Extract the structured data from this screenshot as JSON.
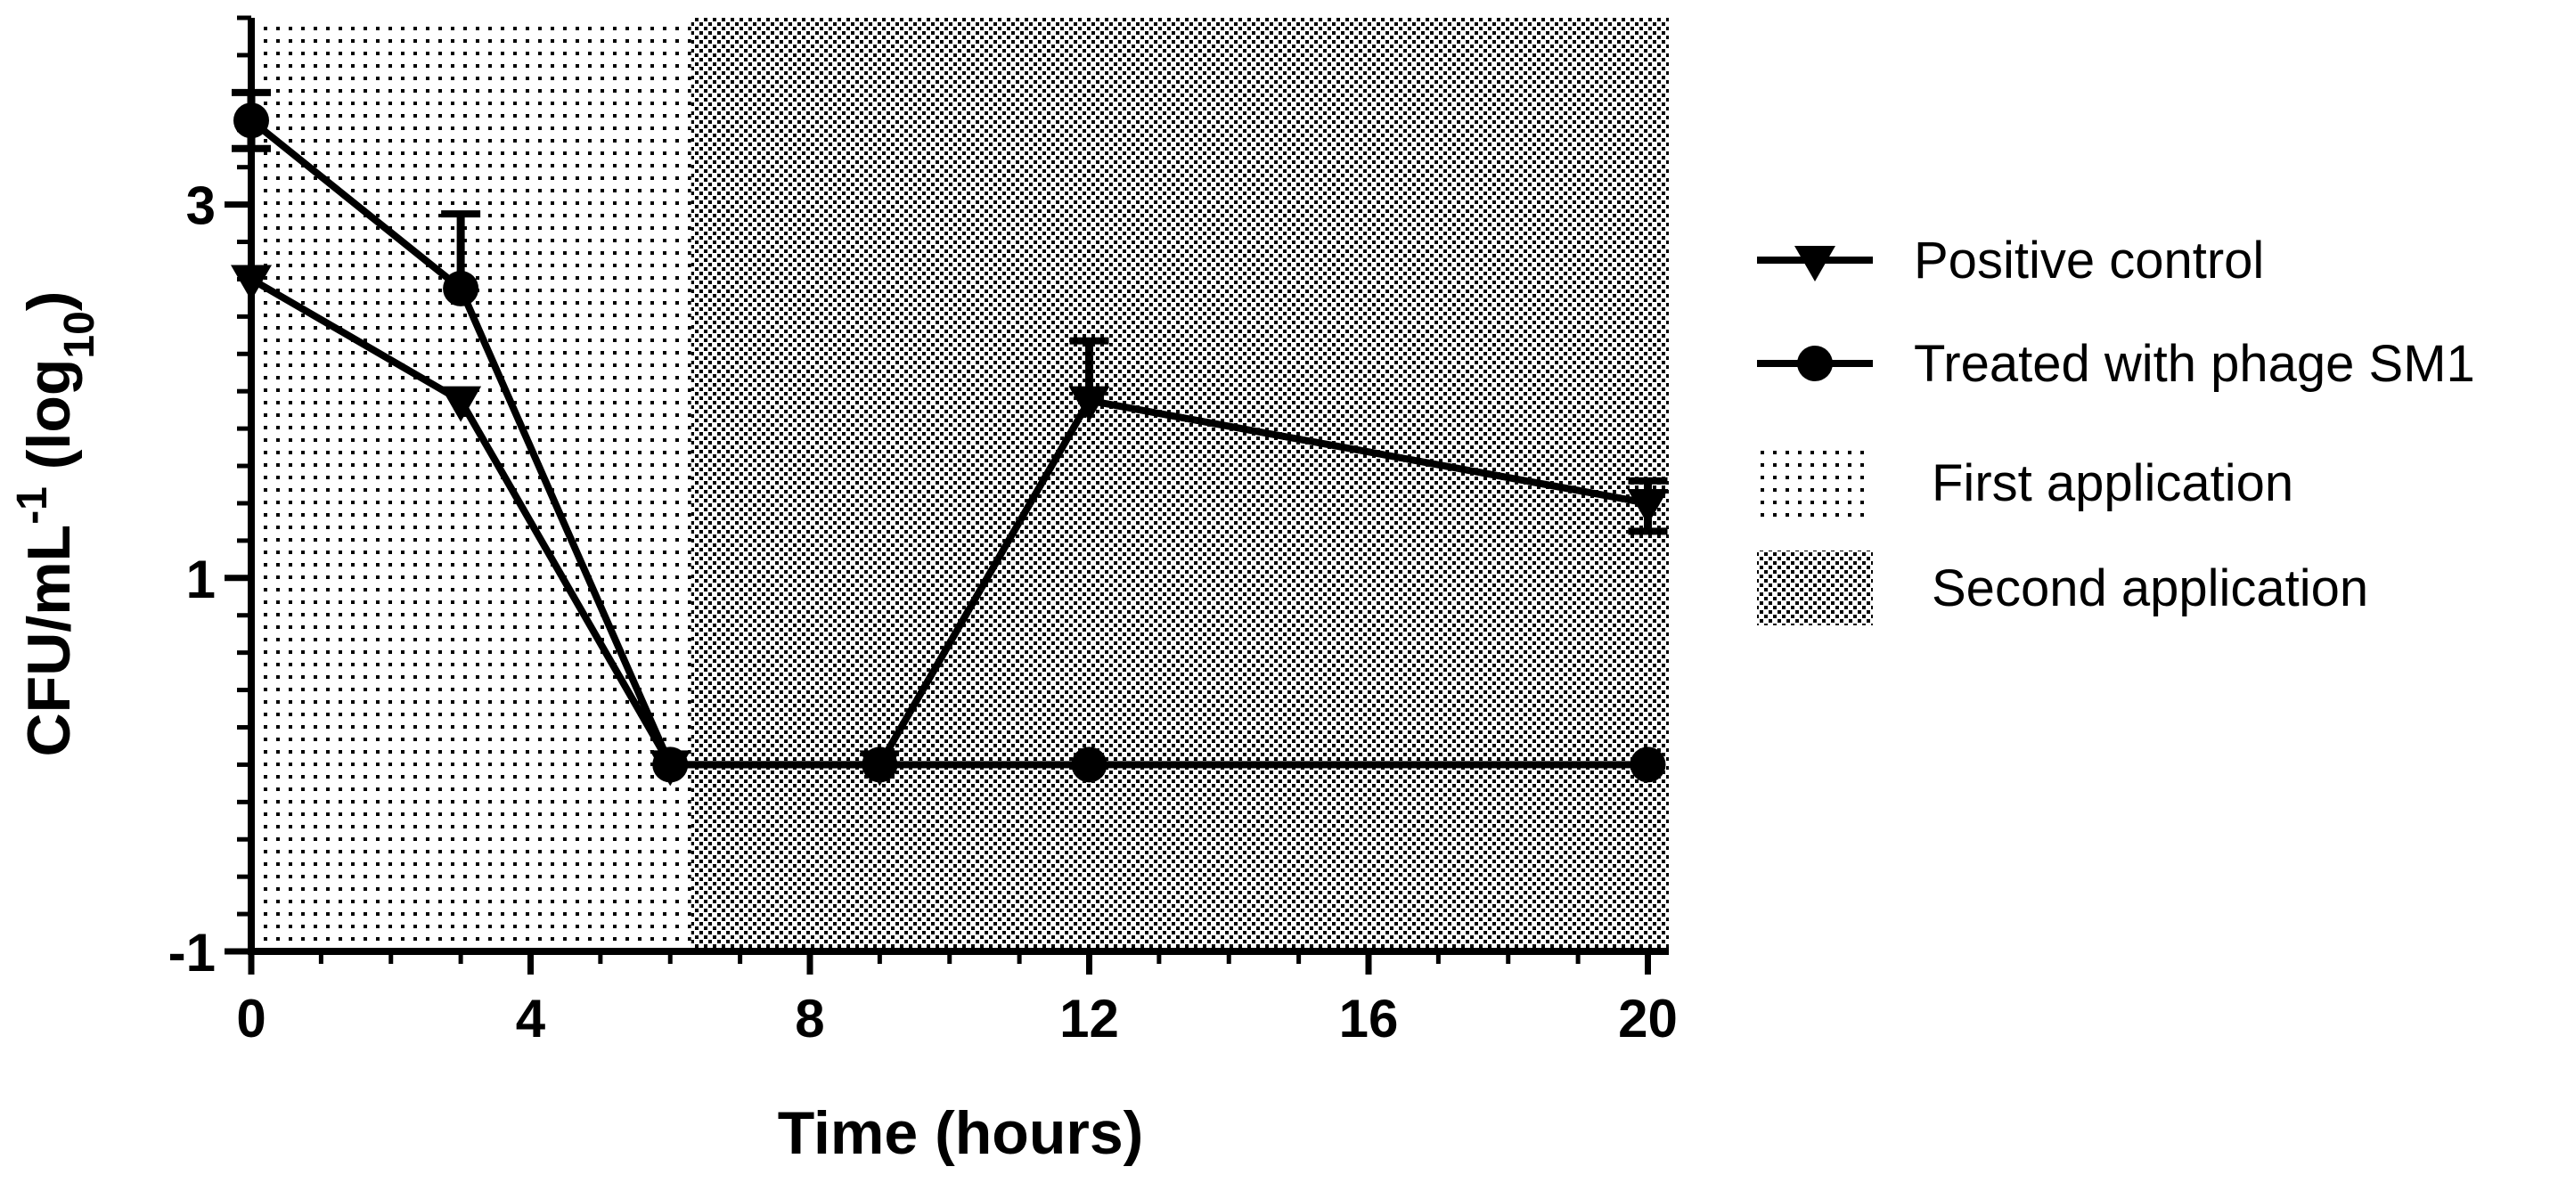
{
  "chart_data": {
    "type": "line",
    "xlabel": "Time (hours)",
    "ylabel": {
      "prefix": "CFU/mL",
      "sup": "-1",
      "log_prefix": " (log",
      "sub": "10",
      "suffix": ")"
    },
    "xlim": [
      0,
      20.3
    ],
    "ylim": [
      -1,
      4
    ],
    "x_ticks": [
      0,
      4,
      8,
      12,
      16,
      20
    ],
    "x_tick_labels": [
      "0",
      "4",
      "8",
      "12",
      "16",
      "20"
    ],
    "y_ticks": [
      -1,
      1,
      3
    ],
    "y_tick_labels": [
      "-1",
      "1",
      "3"
    ],
    "y_minor_ticks": [
      -0.8,
      -0.6,
      -0.4,
      -0.2,
      0,
      0.2,
      0.4,
      0.6,
      0.8,
      1.2,
      1.4,
      1.6,
      1.8,
      2,
      2.2,
      2.4,
      2.6,
      2.8,
      3.2,
      3.4,
      3.6,
      3.8,
      4
    ],
    "grid": false,
    "legend_position": "right",
    "regions": [
      {
        "name": "First application",
        "x_start": 0,
        "x_end": 6.3,
        "pattern": "sparse-dots"
      },
      {
        "name": "Second application",
        "x_start": 6.3,
        "x_end": 20.3,
        "pattern": "dense-checker"
      }
    ],
    "series": [
      {
        "name": "Positive control",
        "marker": "triangle-down",
        "x": [
          0,
          3,
          6,
          9,
          12,
          20
        ],
        "y": [
          2.6,
          1.95,
          0,
          0,
          1.95,
          1.4
        ],
        "error_upper": [
          0,
          0,
          0,
          0,
          0.32,
          0.12
        ],
        "error_lower": [
          0,
          0,
          0,
          0,
          0,
          0.15
        ]
      },
      {
        "name": "Treated with phage SM1",
        "marker": "circle",
        "x": [
          0,
          3,
          6,
          9,
          12,
          20
        ],
        "y": [
          3.45,
          2.55,
          0,
          0,
          0,
          0
        ],
        "error_upper": [
          0.15,
          0.4,
          0,
          0,
          0,
          0
        ],
        "error_lower": [
          0.15,
          0,
          0,
          0,
          0,
          0
        ]
      }
    ],
    "legend": [
      {
        "label": "Positive control",
        "kind": "line-marker",
        "marker": "triangle-down"
      },
      {
        "label": "Treated with phage SM1",
        "kind": "line-marker",
        "marker": "circle"
      },
      {
        "label": "First application",
        "kind": "pattern",
        "pattern": "sparse-dots"
      },
      {
        "label": "Second application",
        "kind": "pattern",
        "pattern": "dense-checker"
      }
    ],
    "colors": {
      "line": "#000000",
      "pattern_dot": "#000000",
      "background": "#ffffff"
    }
  }
}
